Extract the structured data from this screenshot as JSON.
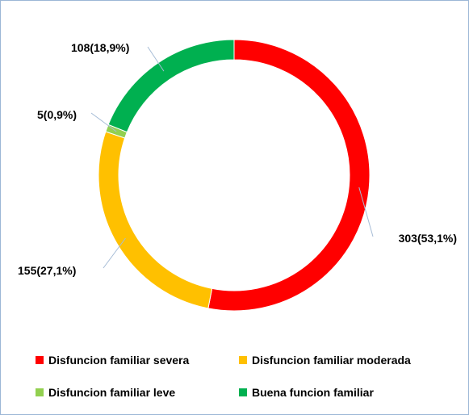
{
  "chart_data": {
    "type": "pie",
    "variant": "doughnut",
    "title": "",
    "start_angle_deg": 0,
    "direction": "clockwise",
    "series": [
      {
        "name": "Disfuncion familiar severa",
        "value": 303,
        "percent": 53.1,
        "label": "303(53,1%)",
        "color": "#ff0000"
      },
      {
        "name": "Disfuncion familiar moderada",
        "value": 155,
        "percent": 27.1,
        "label": "155(27,1%)",
        "color": "#ffc000"
      },
      {
        "name": "Disfuncion familiar leve",
        "value": 5,
        "percent": 0.9,
        "label": "5(0,9%)",
        "color": "#92d050"
      },
      {
        "name": "Buena funcion familiar",
        "value": 108,
        "percent": 18.9,
        "label": "108(18,9%)",
        "color": "#00b050"
      }
    ],
    "legend": {
      "position": "bottom",
      "columns": 2
    },
    "leader_line_color": "#a6bcd6"
  }
}
